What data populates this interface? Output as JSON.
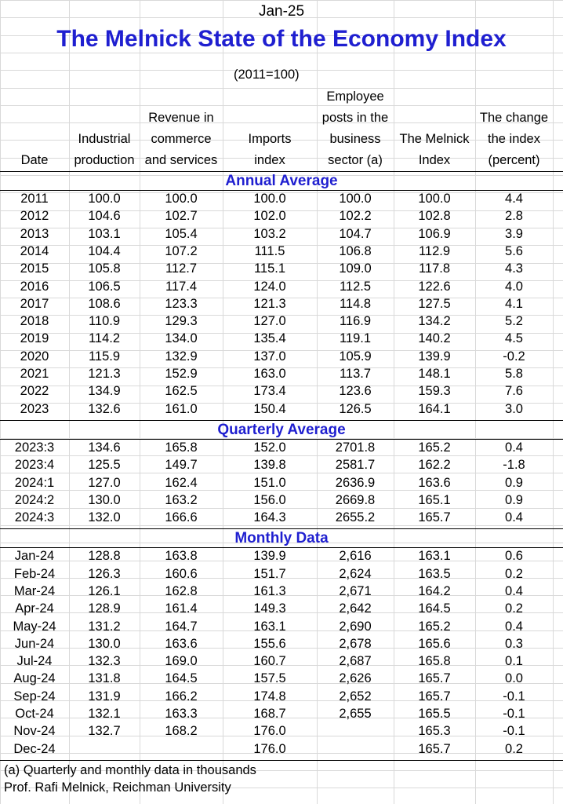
{
  "header": {
    "month": "Jan-25",
    "title": "The Melnick State of the Economy Index",
    "base": "(2011=100)"
  },
  "columns": [
    [
      "Date"
    ],
    [
      "Industrial",
      "production"
    ],
    [
      "Revenue in",
      "commerce",
      "and services"
    ],
    [
      "Imports",
      "index"
    ],
    [
      "Employee",
      "posts in the",
      "business",
      "sector (a)"
    ],
    [
      "The Melnick",
      "Index"
    ],
    [
      "The change",
      "the index",
      "(percent)"
    ]
  ],
  "sections": [
    {
      "title": "Annual Average",
      "rows": [
        [
          "2011",
          "100.0",
          "100.0",
          "100.0",
          "100.0",
          "100.0",
          "4.4"
        ],
        [
          "2012",
          "104.6",
          "102.7",
          "102.0",
          "102.2",
          "102.8",
          "2.8"
        ],
        [
          "2013",
          "103.1",
          "105.4",
          "103.2",
          "104.7",
          "106.9",
          "3.9"
        ],
        [
          "2014",
          "104.4",
          "107.2",
          "111.5",
          "106.8",
          "112.9",
          "5.6"
        ],
        [
          "2015",
          "105.8",
          "112.7",
          "115.1",
          "109.0",
          "117.8",
          "4.3"
        ],
        [
          "2016",
          "106.5",
          "117.4",
          "124.0",
          "112.5",
          "122.6",
          "4.0"
        ],
        [
          "2017",
          "108.6",
          "123.3",
          "121.3",
          "114.8",
          "127.5",
          "4.1"
        ],
        [
          "2018",
          "110.9",
          "129.3",
          "127.0",
          "116.9",
          "134.2",
          "5.2"
        ],
        [
          "2019",
          "114.2",
          "134.0",
          "135.4",
          "119.1",
          "140.2",
          "4.5"
        ],
        [
          "2020",
          "115.9",
          "132.9",
          "137.0",
          "105.9",
          "139.9",
          "-0.2"
        ],
        [
          "2021",
          "121.3",
          "152.9",
          "163.0",
          "113.7",
          "148.1",
          "5.8"
        ],
        [
          "2022",
          "134.9",
          "162.5",
          "173.4",
          "123.6",
          "159.3",
          "7.6"
        ],
        [
          "2023",
          "132.6",
          "161.0",
          "150.4",
          "126.5",
          "164.1",
          "3.0"
        ]
      ]
    },
    {
      "title": "Quarterly Average",
      "rows": [
        [
          "2023:3",
          "134.6",
          "165.8",
          "152.0",
          "2701.8",
          "165.2",
          "0.4"
        ],
        [
          "2023:4",
          "125.5",
          "149.7",
          "139.8",
          "2581.7",
          "162.2",
          "-1.8"
        ],
        [
          "2024:1",
          "127.0",
          "162.4",
          "151.0",
          "2636.9",
          "163.6",
          "0.9"
        ],
        [
          "2024:2",
          "130.0",
          "163.2",
          "156.0",
          "2669.8",
          "165.1",
          "0.9"
        ],
        [
          "2024:3",
          "132.0",
          "166.6",
          "164.3",
          "2655.2",
          "165.7",
          "0.4"
        ]
      ]
    },
    {
      "title": "Monthly Data",
      "rows": [
        [
          "Jan-24",
          "128.8",
          "163.8",
          "139.9",
          "2,616",
          "163.1",
          "0.6"
        ],
        [
          "Feb-24",
          "126.3",
          "160.6",
          "151.7",
          "2,624",
          "163.5",
          "0.2"
        ],
        [
          "Mar-24",
          "126.1",
          "162.8",
          "161.3",
          "2,671",
          "164.2",
          "0.4"
        ],
        [
          "Apr-24",
          "128.9",
          "161.4",
          "149.3",
          "2,642",
          "164.5",
          "0.2"
        ],
        [
          "May-24",
          "131.2",
          "164.7",
          "163.1",
          "2,690",
          "165.2",
          "0.4"
        ],
        [
          "Jun-24",
          "130.0",
          "163.6",
          "155.6",
          "2,678",
          "165.6",
          "0.3"
        ],
        [
          "Jul-24",
          "132.3",
          "169.0",
          "160.7",
          "2,687",
          "165.8",
          "0.1"
        ],
        [
          "Aug-24",
          "131.8",
          "164.5",
          "157.5",
          "2,626",
          "165.7",
          "0.0"
        ],
        [
          "Sep-24",
          "131.9",
          "166.2",
          "174.8",
          "2,652",
          "165.7",
          "-0.1"
        ],
        [
          "Oct-24",
          "132.1",
          "163.3",
          "168.7",
          "2,655",
          "165.5",
          "-0.1"
        ],
        [
          "Nov-24",
          "132.7",
          "168.2",
          "176.0",
          "",
          "165.3",
          "-0.1"
        ],
        [
          "Dec-24",
          "",
          "",
          "176.0",
          "",
          "165.7",
          "0.2"
        ]
      ]
    }
  ],
  "footnotes": [
    "(a) Quarterly and monthly data in thousands",
    "Prof. Rafi Melnick, Reichman University"
  ],
  "colors": {
    "title": "#1f1fd0",
    "grid": "#d9d9d9"
  }
}
